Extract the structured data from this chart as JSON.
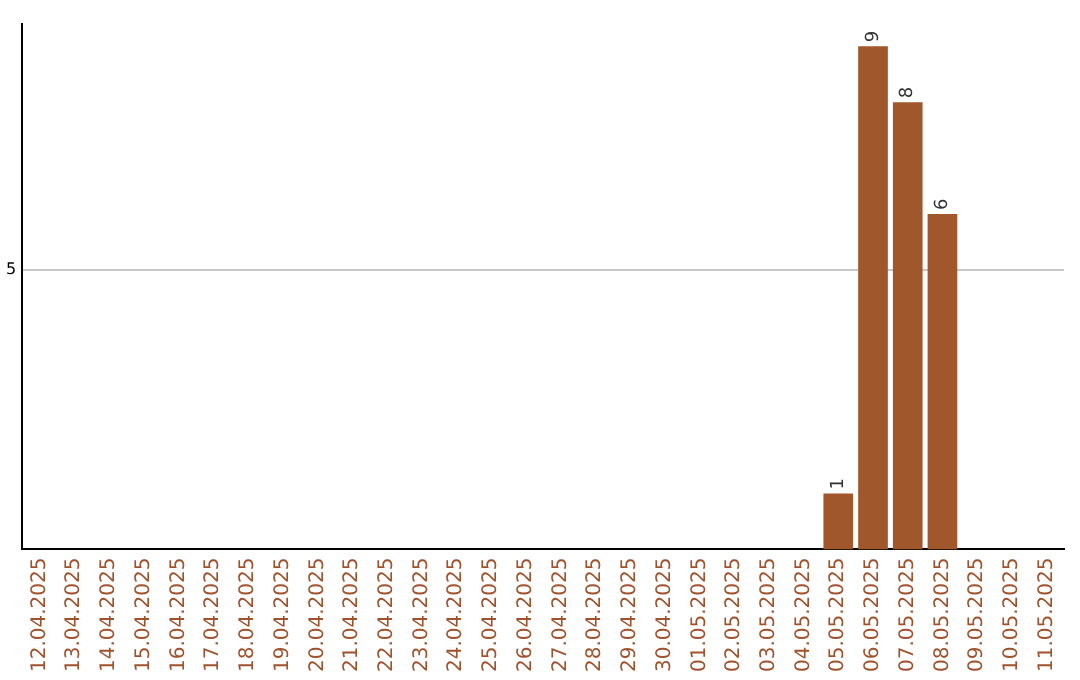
{
  "chart_data": {
    "type": "bar",
    "categories": [
      "12.04.2025",
      "13.04.2025",
      "14.04.2025",
      "15.04.2025",
      "16.04.2025",
      "17.04.2025",
      "18.04.2025",
      "19.04.2025",
      "20.04.2025",
      "21.04.2025",
      "22.04.2025",
      "23.04.2025",
      "24.04.2025",
      "25.04.2025",
      "26.04.2025",
      "27.04.2025",
      "28.04.2025",
      "29.04.2025",
      "30.04.2025",
      "01.05.2025",
      "02.05.2025",
      "03.05.2025",
      "04.05.2025",
      "05.05.2025",
      "06.05.2025",
      "07.05.2025",
      "08.05.2025",
      "09.05.2025",
      "10.05.2025",
      "11.05.2025"
    ],
    "values": [
      null,
      null,
      null,
      null,
      null,
      null,
      null,
      null,
      null,
      null,
      null,
      null,
      null,
      null,
      null,
      null,
      null,
      null,
      null,
      null,
      null,
      null,
      null,
      1,
      9,
      8,
      6,
      null,
      null,
      null
    ],
    "color": "#a0572b",
    "ylim": [
      0,
      9.4
    ],
    "yticks": [
      5
    ],
    "grid": "y",
    "data_labels": true,
    "legend": false
  }
}
